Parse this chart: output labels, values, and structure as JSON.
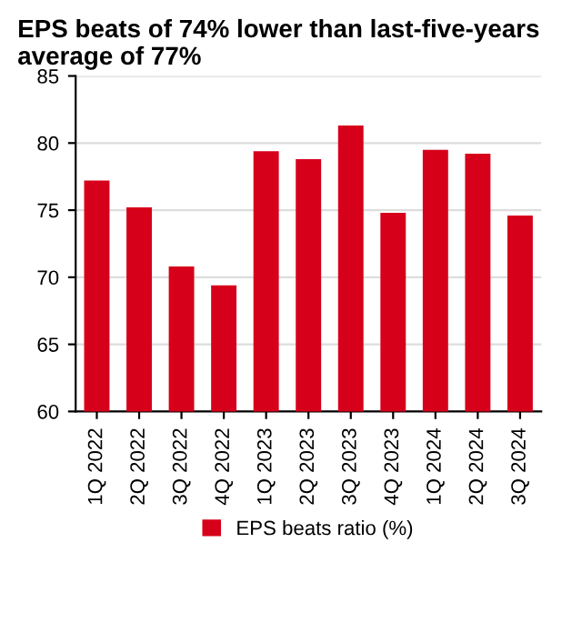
{
  "chart_data": {
    "type": "bar",
    "title": "EPS beats of 74% lower than last-five-years average of 77%",
    "categories": [
      "1Q 2022",
      "2Q 2022",
      "3Q 2022",
      "4Q 2022",
      "1Q 2023",
      "2Q 2023",
      "3Q 2023",
      "4Q 2023",
      "1Q 2024",
      "2Q 2024",
      "3Q 2024"
    ],
    "series": [
      {
        "name": "EPS beats ratio (%)",
        "color": "#d7001a",
        "values": [
          77.2,
          75.2,
          70.8,
          69.4,
          79.4,
          78.8,
          81.3,
          74.8,
          79.5,
          79.2,
          74.6
        ]
      }
    ],
    "ylim": [
      60,
      85
    ],
    "yticks": [
      60,
      65,
      70,
      75,
      80,
      85
    ],
    "grid": "y",
    "legend": "bottom"
  }
}
